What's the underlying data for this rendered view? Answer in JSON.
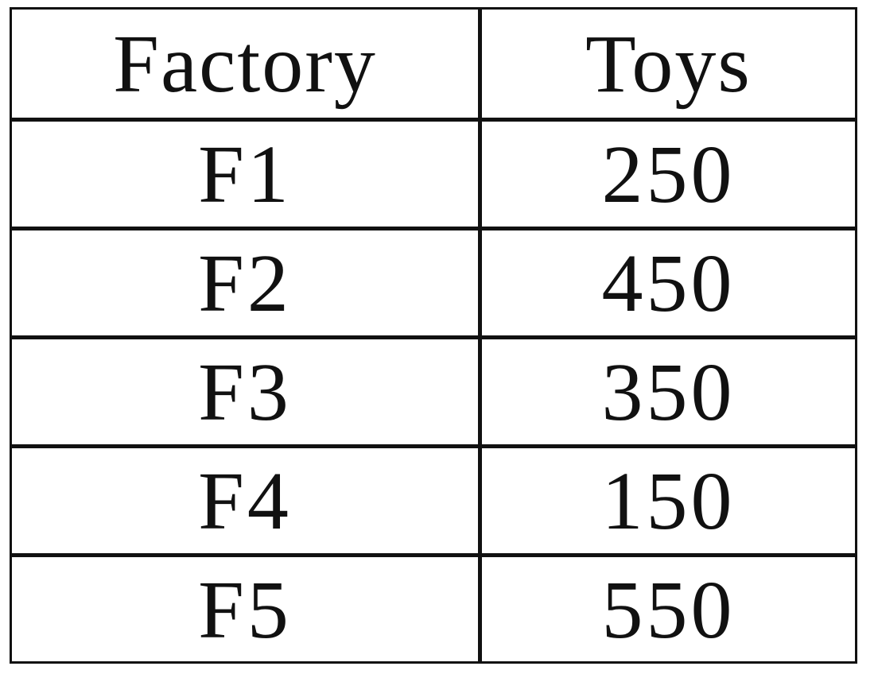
{
  "chart_data": {
    "type": "table",
    "columns": [
      "Factory",
      "Toys"
    ],
    "rows": [
      [
        "F1",
        "250"
      ],
      [
        "F2",
        "450"
      ],
      [
        "F3",
        "350"
      ],
      [
        "F4",
        "150"
      ],
      [
        "F5",
        "550"
      ]
    ],
    "categories": [
      "F1",
      "F2",
      "F3",
      "F4",
      "F5"
    ],
    "values": [
      250,
      450,
      350,
      150,
      550
    ]
  }
}
